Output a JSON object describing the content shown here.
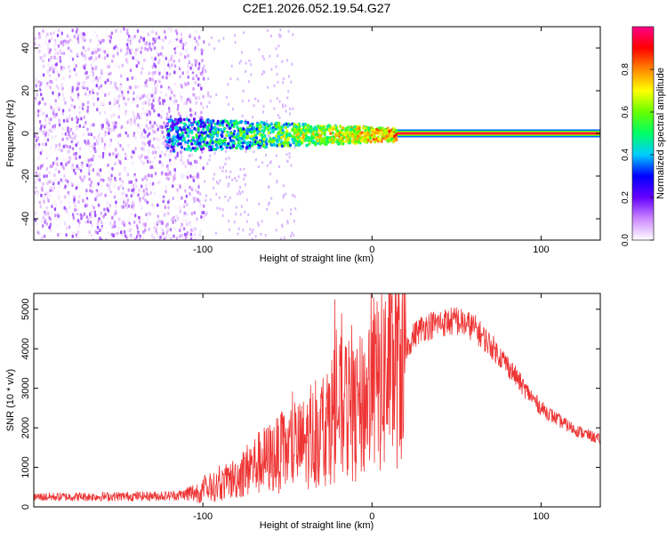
{
  "title": "C2E1.2026.052.19.54.G27",
  "chart_data": [
    {
      "type": "heatmap",
      "xlabel": "Height of straight line (km)",
      "ylabel": "Frequency (Hz)",
      "xlim": [
        -200,
        135
      ],
      "ylim": [
        -50,
        50
      ],
      "x_ticks": [
        -100,
        0,
        100
      ],
      "y_ticks": [
        -40,
        -20,
        0,
        20,
        40
      ],
      "colorbar": {
        "label": "Normalized spectral amplitude",
        "range": [
          0,
          1
        ],
        "ticks": [
          "0.0",
          "0.2",
          "0.4",
          "0.6",
          "0.8"
        ],
        "tick_values": [
          0.0,
          0.2,
          0.4,
          0.6,
          0.8
        ],
        "colors": [
          "#ffffff",
          "#cc88ff",
          "#6600ff",
          "#0000ff",
          "#00ccff",
          "#00ff66",
          "#66ff00",
          "#ffff00",
          "#ff8800",
          "#ff0000",
          "#ff0088"
        ]
      },
      "features": {
        "carrier_line_start_km": 15,
        "carrier_frequency_hz": 0,
        "noise_region_end_km": -100
      }
    },
    {
      "type": "line",
      "xlabel": "Height of straight line (km)",
      "ylabel": "SNR (10 * v/v)",
      "xlim": [
        -200,
        135
      ],
      "ylim": [
        0,
        5400
      ],
      "x_ticks": [
        -100,
        0,
        100
      ],
      "y_ticks": [
        0,
        1000,
        2000,
        3000,
        4000,
        5000
      ],
      "color": "#ee3333",
      "envelope": {
        "x": [
          -200,
          -160,
          -120,
          -110,
          -100,
          -90,
          -80,
          -70,
          -60,
          -50,
          -40,
          -30,
          -25,
          -20,
          -15,
          -10,
          -5,
          0,
          5,
          10,
          15,
          20,
          25,
          30,
          40,
          50,
          60,
          70,
          80,
          90,
          100,
          110,
          120,
          135
        ],
        "y": [
          250,
          260,
          280,
          320,
          400,
          550,
          750,
          1050,
          1250,
          1400,
          1600,
          1900,
          2200,
          2500,
          2450,
          2300,
          2600,
          2950,
          3100,
          3300,
          3600,
          4000,
          4350,
          4550,
          4650,
          4700,
          4550,
          4100,
          3600,
          3000,
          2500,
          2200,
          1950,
          1700
        ]
      },
      "spikes": [
        {
          "x": -22,
          "y": 5250
        },
        {
          "x": -18,
          "y": 4900
        },
        {
          "x": -12,
          "y": 4600
        },
        {
          "x": 8,
          "y": 5200
        },
        {
          "x": 10,
          "y": 5400
        },
        {
          "x": 50,
          "y": 5050
        }
      ]
    }
  ]
}
